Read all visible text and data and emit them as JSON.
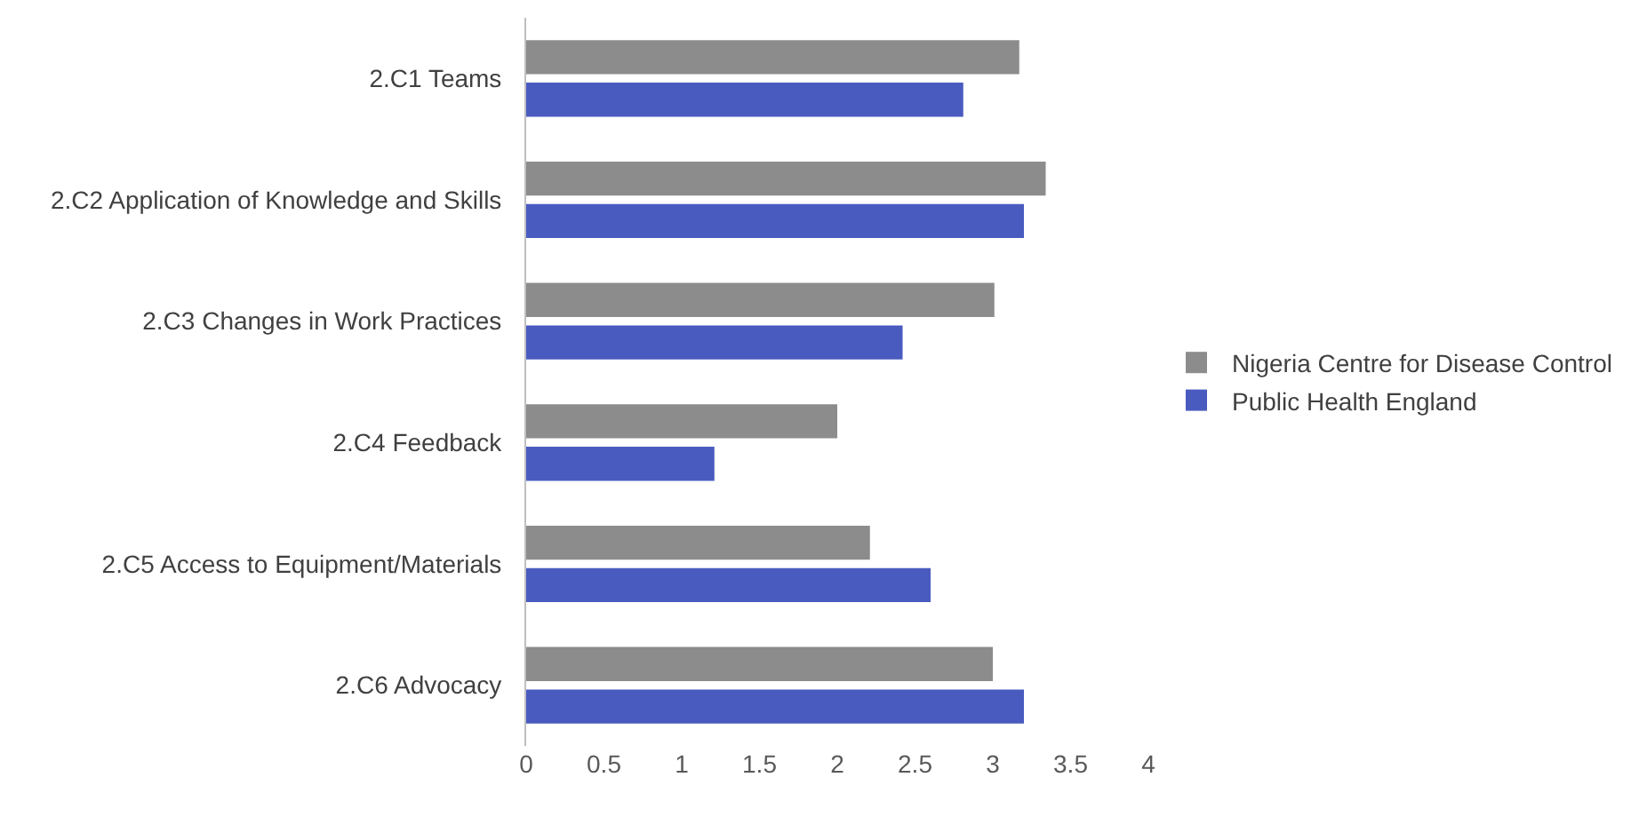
{
  "chart_data": {
    "type": "bar",
    "orientation": "horizontal",
    "categories": [
      "2.C1 Teams",
      "2.C2 Application of Knowledge and Skills",
      "2.C3 Changes in Work Practices",
      "2.C4 Feedback",
      "2.C5 Access to Equipment/Materials",
      "2.C6 Advocacy"
    ],
    "series": [
      {
        "name": "Nigeria Centre for Disease Control",
        "color": "#8c8c8c",
        "values": [
          3.17,
          3.34,
          3.01,
          2.0,
          2.21,
          3.0
        ]
      },
      {
        "name": "Public Health England",
        "color": "#4a5bbf",
        "values": [
          2.81,
          3.2,
          2.42,
          1.21,
          2.6,
          3.2
        ]
      }
    ],
    "xlim": [
      0,
      4
    ],
    "xticks": [
      0,
      0.5,
      1,
      1.5,
      2,
      2.5,
      3,
      3.5,
      4
    ],
    "grid": false,
    "legend": "right"
  }
}
